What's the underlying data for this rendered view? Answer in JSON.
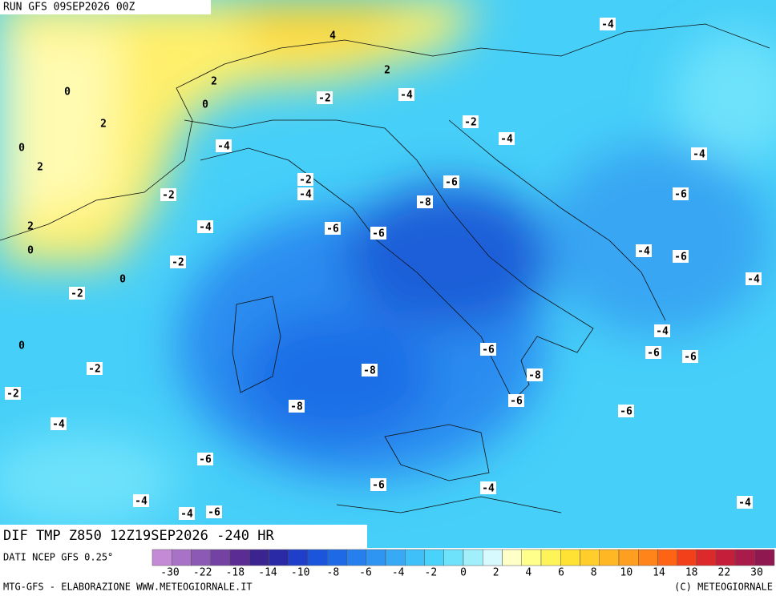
{
  "header": {
    "run": "RUN GFS 09SEP2026 00Z",
    "field": "DIF TMP Z850 12Z19SEP2026 -240 HR",
    "source": "DATI NCEP GFS 0.25°"
  },
  "footer": {
    "left": "MTG-GFS - ELABORAZIONE WWW.METEOGIORNALE.IT",
    "right": "(C) METEOGIORNALE"
  },
  "map_labels": [
    "4",
    "-4",
    "2",
    "0",
    "2",
    "0",
    "-2",
    "-4",
    "2",
    "-2",
    "-4",
    "0",
    "-4",
    "-4",
    "2",
    "-2",
    "-6",
    "-4",
    "-2",
    "-6",
    "-8",
    "2",
    "-4",
    "-6",
    "-6",
    "0",
    "-2",
    "-4",
    "-6",
    "0",
    "-4",
    "-2",
    "-4",
    "0",
    "-6",
    "-6",
    "-6",
    "-2",
    "-8",
    "-8",
    "-2",
    "-6",
    "-8",
    "-6",
    "-4",
    "-6",
    "-6",
    "-4",
    "-4",
    "-4",
    "-4",
    "-6"
  ],
  "colorbar": {
    "colors": [
      "#c58ad6",
      "#a872c7",
      "#8c5ab4",
      "#7442a3",
      "#5a2c94",
      "#3c2490",
      "#2a2aa6",
      "#1f3fc8",
      "#1b55dc",
      "#1e6ae6",
      "#2580ee",
      "#2e95f2",
      "#38aaf5",
      "#3fc0f8",
      "#4ad3fa",
      "#6ee2fb",
      "#a2effc",
      "#d6fafd",
      "#ffffc8",
      "#ffff8c",
      "#fff35a",
      "#ffe233",
      "#ffce2a",
      "#ffb824",
      "#ff9f1f",
      "#ff841a",
      "#ff6414",
      "#f2401a",
      "#dc2a2a",
      "#c41e3a",
      "#aa1a4a",
      "#901850"
    ],
    "ticks": [
      -30,
      -22,
      -18,
      -14,
      -10,
      -8,
      -6,
      -4,
      -2,
      0,
      2,
      4,
      6,
      8,
      10,
      14,
      18,
      22,
      30
    ]
  }
}
